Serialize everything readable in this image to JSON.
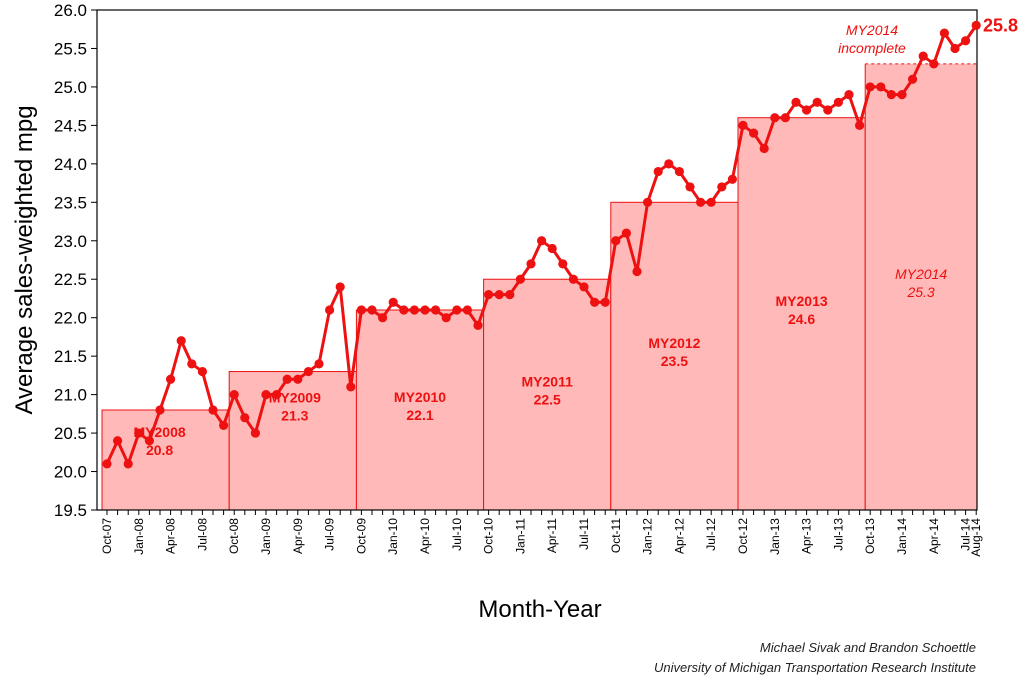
{
  "chart_data": {
    "type": "line",
    "xlabel": "Month-Year",
    "ylabel": "Average sales-weighted mpg",
    "ylim": [
      19.5,
      26.0
    ],
    "yticks": [
      "19.5",
      "20.0",
      "20.5",
      "21.0",
      "21.5",
      "22.0",
      "22.5",
      "23.0",
      "23.5",
      "24.0",
      "24.5",
      "25.0",
      "25.5",
      "26.0"
    ],
    "months": [
      "Oct-07",
      "Nov-07",
      "Dec-07",
      "Jan-08",
      "Feb-08",
      "Mar-08",
      "Apr-08",
      "May-08",
      "Jun-08",
      "Jul-08",
      "Aug-08",
      "Sep-08",
      "Oct-08",
      "Nov-08",
      "Dec-08",
      "Jan-09",
      "Feb-09",
      "Mar-09",
      "Apr-09",
      "May-09",
      "Jun-09",
      "Jul-09",
      "Aug-09",
      "Sep-09",
      "Oct-09",
      "Nov-09",
      "Dec-09",
      "Jan-10",
      "Feb-10",
      "Mar-10",
      "Apr-10",
      "May-10",
      "Jun-10",
      "Jul-10",
      "Aug-10",
      "Sep-10",
      "Oct-10",
      "Nov-10",
      "Dec-10",
      "Jan-11",
      "Feb-11",
      "Mar-11",
      "Apr-11",
      "May-11",
      "Jun-11",
      "Jul-11",
      "Aug-11",
      "Sep-11",
      "Oct-11",
      "Nov-11",
      "Dec-11",
      "Jan-12",
      "Feb-12",
      "Mar-12",
      "Apr-12",
      "May-12",
      "Jun-12",
      "Jul-12",
      "Aug-12",
      "Sep-12",
      "Oct-12",
      "Nov-12",
      "Dec-12",
      "Jan-13",
      "Feb-13",
      "Mar-13",
      "Apr-13",
      "May-13",
      "Jun-13",
      "Jul-13",
      "Aug-13",
      "Sep-13",
      "Oct-13",
      "Nov-13",
      "Dec-13",
      "Jan-14",
      "Feb-14",
      "Mar-14",
      "Apr-14",
      "May-14",
      "Jun-14",
      "Jul-14",
      "Aug-14"
    ],
    "xtick_labels": [
      {
        "index": 0,
        "label": "Oct-07"
      },
      {
        "index": 3,
        "label": "Jan-08"
      },
      {
        "index": 6,
        "label": "Apr-08"
      },
      {
        "index": 9,
        "label": "Jul-08"
      },
      {
        "index": 12,
        "label": "Oct-08"
      },
      {
        "index": 15,
        "label": "Jan-09"
      },
      {
        "index": 18,
        "label": "Apr-09"
      },
      {
        "index": 21,
        "label": "Jul-09"
      },
      {
        "index": 24,
        "label": "Oct-09"
      },
      {
        "index": 27,
        "label": "Jan-10"
      },
      {
        "index": 30,
        "label": "Apr-10"
      },
      {
        "index": 33,
        "label": "Jul-10"
      },
      {
        "index": 36,
        "label": "Oct-10"
      },
      {
        "index": 39,
        "label": "Jan-11"
      },
      {
        "index": 42,
        "label": "Apr-11"
      },
      {
        "index": 45,
        "label": "Jul-11"
      },
      {
        "index": 48,
        "label": "Oct-11"
      },
      {
        "index": 51,
        "label": "Jan-12"
      },
      {
        "index": 54,
        "label": "Apr-12"
      },
      {
        "index": 57,
        "label": "Jul-12"
      },
      {
        "index": 60,
        "label": "Oct-12"
      },
      {
        "index": 63,
        "label": "Jan-13"
      },
      {
        "index": 66,
        "label": "Apr-13"
      },
      {
        "index": 69,
        "label": "Jul-13"
      },
      {
        "index": 72,
        "label": "Oct-13"
      },
      {
        "index": 75,
        "label": "Jan-14"
      },
      {
        "index": 78,
        "label": "Apr-14"
      },
      {
        "index": 81,
        "label": "Jul-14"
      },
      {
        "index": 82,
        "label": "Aug-14"
      }
    ],
    "series": [
      {
        "values": [
          20.1,
          20.4,
          20.1,
          20.5,
          20.4,
          20.8,
          21.2,
          21.7,
          21.4,
          21.3,
          20.8,
          20.6,
          21.0,
          20.7,
          20.5,
          21.0,
          21.0,
          21.2,
          21.2,
          21.3,
          21.4,
          22.1,
          22.4,
          21.1,
          22.1,
          22.1,
          22.0,
          22.2,
          22.1,
          22.1,
          22.1,
          22.1,
          22.0,
          22.1,
          22.1,
          21.9,
          22.3,
          22.3,
          22.3,
          22.5,
          22.7,
          23.0,
          22.9,
          22.7,
          22.5,
          22.4,
          22.2,
          22.2,
          23.0,
          23.1,
          22.6,
          23.5,
          23.9,
          24.0,
          23.9,
          23.7,
          23.5,
          23.5,
          23.7,
          23.8,
          24.5,
          24.4,
          24.2,
          24.6,
          24.6,
          24.8,
          24.7,
          24.8,
          24.7,
          24.8,
          24.9,
          24.5,
          25.0,
          25.0,
          24.9,
          24.9,
          25.1,
          25.4,
          25.3,
          25.7,
          25.5,
          25.6,
          25.8
        ]
      }
    ],
    "model_years": [
      {
        "label": "MY2008",
        "value": "20.8",
        "mpg": 20.8,
        "start": 0,
        "end": 12
      },
      {
        "label": "MY2009",
        "value": "21.3",
        "mpg": 21.3,
        "start": 12,
        "end": 24
      },
      {
        "label": "MY2010",
        "value": "22.1",
        "mpg": 22.1,
        "start": 24,
        "end": 36
      },
      {
        "label": "MY2011",
        "value": "22.5",
        "mpg": 22.5,
        "start": 36,
        "end": 48
      },
      {
        "label": "MY2012",
        "value": "23.5",
        "mpg": 23.5,
        "start": 48,
        "end": 60
      },
      {
        "label": "MY2013",
        "value": "24.6",
        "mpg": 24.6,
        "start": 60,
        "end": 72
      },
      {
        "label": "MY2014",
        "value": "25.3",
        "mpg": 25.3,
        "start": 72,
        "end": 83,
        "incomplete": true
      }
    ],
    "annotations": {
      "latest_value": "25.8",
      "incomplete_line1": "MY2014",
      "incomplete_line2": "incomplete"
    },
    "colors": {
      "line": "#ee1111",
      "bar_fill": "#ffb9b9",
      "bar_edge": "#ee1111",
      "text": "#ee1111"
    },
    "grid": false
  },
  "credits": {
    "line1": "Michael Sivak and Brandon Schoettle",
    "line2": "University of Michigan Transportation Research Institute"
  }
}
